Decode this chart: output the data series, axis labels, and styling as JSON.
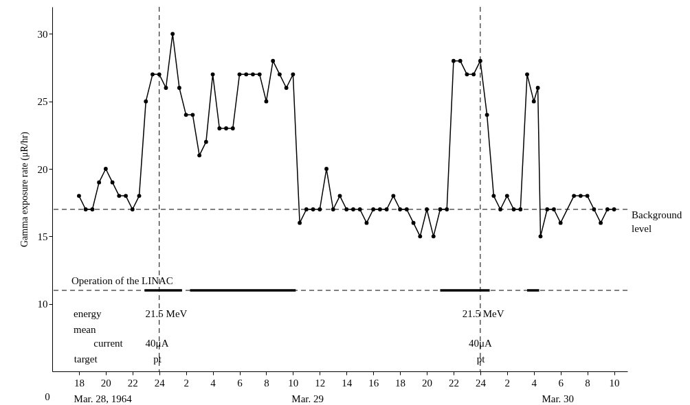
{
  "chart_data": {
    "type": "line",
    "ylabel": "Gamma exposure rate (μR/hr)",
    "xlim": [
      "1964-03-28T16:00",
      "1964-03-30T11:00"
    ],
    "ylim": [
      5,
      32
    ],
    "xticks": [
      {
        "value": "1964-03-28T18:00",
        "label": "18"
      },
      {
        "value": "1964-03-28T20:00",
        "label": "20"
      },
      {
        "value": "1964-03-28T22:00",
        "label": "22"
      },
      {
        "value": "1964-03-29T00:00",
        "label": "24"
      },
      {
        "value": "1964-03-29T02:00",
        "label": "2"
      },
      {
        "value": "1964-03-29T04:00",
        "label": "4"
      },
      {
        "value": "1964-03-29T06:00",
        "label": "6"
      },
      {
        "value": "1964-03-29T08:00",
        "label": "8"
      },
      {
        "value": "1964-03-29T10:00",
        "label": "10"
      },
      {
        "value": "1964-03-29T12:00",
        "label": "12"
      },
      {
        "value": "1964-03-29T14:00",
        "label": "14"
      },
      {
        "value": "1964-03-29T16:00",
        "label": "16"
      },
      {
        "value": "1964-03-29T18:00",
        "label": "18"
      },
      {
        "value": "1964-03-29T20:00",
        "label": "20"
      },
      {
        "value": "1964-03-29T22:00",
        "label": "22"
      },
      {
        "value": "1964-03-30T00:00",
        "label": "24"
      },
      {
        "value": "1964-03-30T02:00",
        "label": "2"
      },
      {
        "value": "1964-03-30T04:00",
        "label": "4"
      },
      {
        "value": "1964-03-30T06:00",
        "label": "6"
      },
      {
        "value": "1964-03-30T08:00",
        "label": "8"
      },
      {
        "value": "1964-03-30T10:00",
        "label": "10"
      }
    ],
    "yticks": [
      10,
      15,
      20,
      25,
      30
    ],
    "grid": false,
    "marker": "circle",
    "line_style": "solid",
    "series": [
      {
        "color": "#000000",
        "x": [
          "1964-03-28T18:00",
          "1964-03-28T18:30",
          "1964-03-28T19:00",
          "1964-03-28T19:30",
          "1964-03-28T20:00",
          "1964-03-28T20:30",
          "1964-03-28T21:00",
          "1964-03-28T21:30",
          "1964-03-28T22:00",
          "1964-03-28T22:30",
          "1964-03-28T23:00",
          "1964-03-28T23:30",
          "1964-03-29T00:00",
          "1964-03-29T00:30",
          "1964-03-29T01:00",
          "1964-03-29T01:30",
          "1964-03-29T02:00",
          "1964-03-29T02:30",
          "1964-03-29T03:00",
          "1964-03-29T03:30",
          "1964-03-29T04:00",
          "1964-03-29T04:30",
          "1964-03-29T05:00",
          "1964-03-29T05:30",
          "1964-03-29T06:00",
          "1964-03-29T06:30",
          "1964-03-29T07:00",
          "1964-03-29T07:30",
          "1964-03-29T08:00",
          "1964-03-29T08:30",
          "1964-03-29T09:00",
          "1964-03-29T09:30",
          "1964-03-29T10:00",
          "1964-03-29T10:30",
          "1964-03-29T11:00",
          "1964-03-29T11:30",
          "1964-03-29T12:00",
          "1964-03-29T12:30",
          "1964-03-29T13:00",
          "1964-03-29T13:30",
          "1964-03-29T14:00",
          "1964-03-29T14:30",
          "1964-03-29T15:00",
          "1964-03-29T15:30",
          "1964-03-29T16:00",
          "1964-03-29T16:30",
          "1964-03-29T17:00",
          "1964-03-29T17:30",
          "1964-03-29T18:00",
          "1964-03-29T18:30",
          "1964-03-29T19:00",
          "1964-03-29T19:30",
          "1964-03-29T20:00",
          "1964-03-29T20:30",
          "1964-03-29T21:00",
          "1964-03-29T21:30",
          "1964-03-29T22:00",
          "1964-03-29T22:30",
          "1964-03-29T23:00",
          "1964-03-29T23:30",
          "1964-03-30T00:00",
          "1964-03-30T00:30",
          "1964-03-30T01:00",
          "1964-03-30T01:30",
          "1964-03-30T02:00",
          "1964-03-30T02:30",
          "1964-03-30T03:00",
          "1964-03-30T03:30",
          "1964-03-30T04:00",
          "1964-03-30T04:18",
          "1964-03-30T04:30",
          "1964-03-30T05:00",
          "1964-03-30T05:30",
          "1964-03-30T06:00",
          "1964-03-30T07:00",
          "1964-03-30T07:30",
          "1964-03-30T08:00",
          "1964-03-30T08:30",
          "1964-03-30T09:00",
          "1964-03-30T09:30",
          "1964-03-30T10:00"
        ],
        "values": [
          18,
          17,
          17,
          19,
          20,
          19,
          18,
          18,
          17,
          18,
          25,
          27,
          27,
          26,
          30,
          26,
          24,
          24,
          21,
          22,
          27,
          23,
          23,
          23,
          27,
          27,
          27,
          27,
          25,
          28,
          27,
          26,
          27,
          16,
          17,
          17,
          17,
          20,
          17,
          18,
          17,
          17,
          17,
          16,
          17,
          17,
          17,
          18,
          17,
          17,
          16,
          15,
          17,
          15,
          17,
          17,
          28,
          28,
          27,
          27,
          28,
          24,
          18,
          17,
          18,
          17,
          17,
          27,
          25,
          26,
          15,
          17,
          17,
          16,
          18,
          18,
          18,
          17,
          16,
          17,
          17
        ]
      },
      {
        "color": "#000000",
        "marker": "none",
        "x": [
          "1964-03-28T22:54",
          "1964-03-29T01:42",
          "1964-03-29T02:00",
          "1964-03-29T02:18",
          "1964-03-29T10:12",
          "1964-03-29T16:00",
          "1964-03-29T21:00",
          "1964-03-30T00:42",
          "1964-03-30T02:00",
          "1964-03-30T03:30",
          "1964-03-30T04:24"
        ],
        "values": [
          11,
          11,
          null,
          11,
          11,
          null,
          11,
          11,
          null,
          11,
          11
        ]
      }
    ],
    "ref_lines": [
      {
        "axis": "y",
        "value": 17,
        "label": "Background level",
        "line_style": "dashed"
      },
      {
        "axis": "y",
        "value": 11,
        "label": "Operation of the LINAC",
        "line_style": "dashed"
      },
      {
        "axis": "x",
        "value": "1964-03-29T00:00",
        "line_style": "dashed"
      },
      {
        "axis": "x",
        "value": "1964-03-30T00:00",
        "line_style": "dashed"
      }
    ],
    "annotations": [
      "energy",
      "mean",
      "current",
      "target",
      "21.5 MeV",
      "40μA",
      "pt",
      "21.5 MeV",
      "40μA",
      "pt",
      "Mar. 28, 1964",
      "Mar. 29",
      "Mar. 30",
      "0"
    ]
  }
}
